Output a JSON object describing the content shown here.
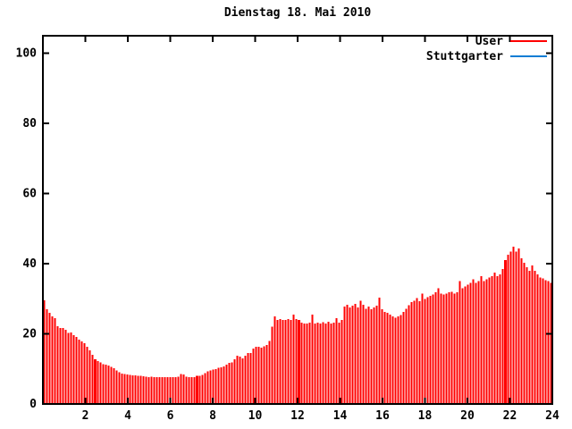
{
  "title": "Dienstag 18. Mai 2010",
  "legend": {
    "entries": [
      {
        "label": "User",
        "color": "#ff0000"
      },
      {
        "label": "Stuttgarter",
        "color": "#0d7dd4"
      }
    ]
  },
  "axes": {
    "x": {
      "min": 0,
      "max": 24,
      "ticks": [
        2,
        4,
        6,
        8,
        10,
        12,
        14,
        16,
        18,
        20,
        22,
        24
      ]
    },
    "y": {
      "min": 0,
      "max": 105,
      "ticks": [
        0,
        20,
        40,
        60,
        80,
        100
      ]
    }
  },
  "colors": {
    "bar": "#ff0000",
    "axis": "#000000",
    "background": "#ffffff"
  },
  "chart_data": {
    "type": "bar",
    "style": "impulses",
    "title": "Dienstag 18. Mai 2010",
    "xlabel": "",
    "ylabel": "",
    "xlim": [
      0,
      24
    ],
    "ylim": [
      0,
      105
    ],
    "x_unit": "hour-of-day",
    "x_start": 0,
    "x_step": 0.126316,
    "grid": false,
    "legend_position": "top-right-inside",
    "series": [
      {
        "name": "User",
        "color": "#ff0000",
        "highlight_indices": [
          19,
          57,
          95,
          172
        ],
        "values": [
          29.6,
          27.0,
          26.0,
          25.0,
          24.5,
          22.2,
          21.7,
          21.7,
          21.2,
          20.3,
          20.4,
          19.6,
          19.1,
          18.3,
          17.8,
          17.3,
          16.3,
          15.3,
          14.0,
          12.7,
          12.2,
          11.8,
          11.4,
          11.2,
          11.0,
          10.6,
          10.2,
          9.6,
          9.0,
          8.7,
          8.5,
          8.4,
          8.3,
          8.2,
          8.1,
          8.0,
          8.0,
          7.9,
          7.8,
          7.7,
          7.8,
          7.7,
          7.7,
          7.6,
          7.6,
          7.6,
          7.6,
          7.6,
          7.6,
          7.7,
          7.8,
          8.5,
          8.4,
          7.8,
          7.7,
          7.6,
          7.7,
          8.0,
          8.0,
          8.3,
          8.8,
          9.3,
          9.5,
          9.8,
          10.0,
          10.3,
          10.5,
          10.7,
          11.2,
          11.7,
          11.8,
          12.8,
          13.7,
          13.5,
          13.0,
          13.8,
          14.5,
          14.5,
          15.8,
          16.3,
          16.3,
          16.0,
          16.5,
          16.8,
          18.0,
          22.0,
          25.0,
          24.0,
          24.2,
          24.0,
          24.0,
          24.2,
          24.0,
          25.5,
          24.2,
          24.0,
          23.2,
          23.0,
          23.0,
          23.2,
          25.5,
          23.0,
          23.2,
          23.0,
          23.3,
          23.0,
          23.5,
          23.0,
          23.2,
          24.5,
          23.2,
          24.0,
          27.8,
          28.3,
          27.5,
          28.0,
          28.5,
          27.5,
          29.5,
          28.3,
          27.2,
          27.8,
          27.0,
          27.5,
          28.0,
          30.3,
          27.0,
          26.2,
          26.0,
          25.5,
          25.0,
          24.6,
          25.0,
          25.3,
          26.2,
          27.2,
          28.2,
          29.0,
          29.5,
          30.2,
          29.3,
          31.5,
          30.0,
          30.5,
          30.8,
          31.2,
          31.8,
          33.0,
          31.5,
          31.2,
          31.5,
          31.8,
          32.0,
          31.5,
          31.8,
          35.0,
          33.0,
          33.5,
          34.0,
          34.5,
          35.5,
          34.5,
          35.0,
          36.5,
          35.0,
          35.5,
          36.0,
          36.5,
          37.5,
          36.5,
          37.0,
          38.5,
          41.0,
          42.5,
          43.5,
          44.8,
          43.5,
          44.3,
          41.5,
          40.3,
          39.0,
          38.0,
          39.5,
          38.0,
          37.0,
          36.0,
          35.8,
          35.3,
          35.0,
          34.5
        ]
      },
      {
        "name": "Stuttgarter",
        "color": "#0d7dd4",
        "values": []
      }
    ]
  }
}
